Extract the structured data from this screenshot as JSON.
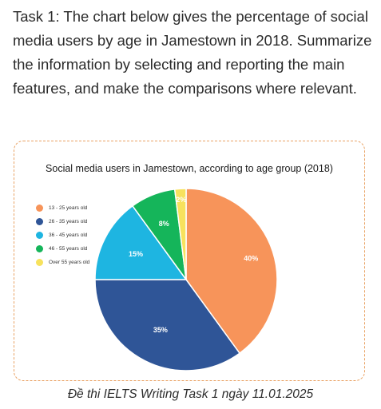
{
  "prompt_text": "Task 1: The chart below gives the percentage of social media users by age in Jamestown in 2018. Summarize the information by selecting and reporting the main features, and make the comparisons where relevant.",
  "caption": "Đề thi IELTS Writing Task 1 ngày 11.01.2025",
  "chart_data": {
    "type": "pie",
    "title": "Social media users in Jamestown, according to age group (2018)",
    "categories": [
      "13 - 25 years old",
      "26 - 35 years old",
      "36 - 45 years old",
      "46 - 55 years old",
      "Over 55 years old"
    ],
    "values": [
      40,
      35,
      15,
      8,
      2
    ],
    "value_labels": [
      "40%",
      "35%",
      "15%",
      "8%",
      "2%"
    ],
    "colors": [
      "#f7945a",
      "#2f5597",
      "#1eb5e1",
      "#15b55a",
      "#f7e25d"
    ],
    "legend_position": "left",
    "start": "12 o'clock",
    "direction": "clockwise"
  }
}
